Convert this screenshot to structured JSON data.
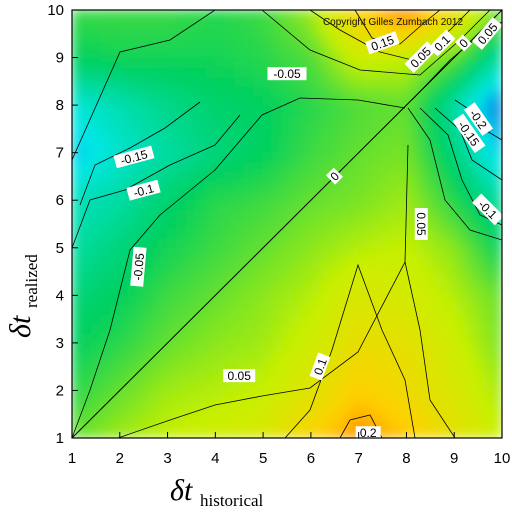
{
  "chart_data": {
    "type": "heatmap",
    "subtype": "contour",
    "x_label": {
      "main": "δt",
      "sub": "historical"
    },
    "y_label": {
      "main": "δt",
      "sub": "realized"
    },
    "x_ticks": [
      1,
      2,
      3,
      4,
      5,
      6,
      7,
      8,
      9,
      10
    ],
    "y_ticks": [
      1,
      2,
      3,
      4,
      5,
      6,
      7,
      8,
      9,
      10
    ],
    "xlim": [
      1,
      10
    ],
    "ylim": [
      1,
      10
    ],
    "grid": false,
    "colormap": [
      "#0033dd",
      "#00e8e8",
      "#00d060",
      "#c8f000",
      "#ffd000",
      "#ff5000"
    ],
    "color_range": [
      -0.25,
      0.25
    ],
    "copyright": "Copyright Gilles Zumbach 2012",
    "grid_values": [
      [
        0.0,
        0.03,
        0.05,
        0.06,
        0.08,
        0.14,
        0.2,
        0.16,
        0.1,
        0.05
      ],
      [
        -0.03,
        0.0,
        0.03,
        0.04,
        0.05,
        0.09,
        0.15,
        0.12,
        0.08,
        0.03
      ],
      [
        -0.05,
        -0.03,
        0.0,
        0.02,
        0.03,
        0.06,
        0.11,
        0.1,
        0.06,
        0.01
      ],
      [
        -0.07,
        -0.05,
        -0.02,
        0.0,
        0.02,
        0.04,
        0.08,
        0.07,
        0.04,
        0.0
      ],
      [
        -0.1,
        -0.07,
        -0.04,
        -0.02,
        0.0,
        0.02,
        0.04,
        0.05,
        0.02,
        -0.05
      ],
      [
        -0.12,
        -0.1,
        -0.06,
        -0.03,
        -0.02,
        0.0,
        0.01,
        0.03,
        -0.03,
        -0.1
      ],
      [
        -0.17,
        -0.13,
        -0.1,
        -0.07,
        -0.05,
        -0.02,
        0.0,
        0.01,
        -0.07,
        -0.17
      ],
      [
        -0.14,
        -0.11,
        -0.08,
        -0.06,
        -0.05,
        -0.03,
        -0.01,
        0.0,
        -0.1,
        -0.22
      ],
      [
        -0.05,
        -0.04,
        -0.04,
        -0.04,
        -0.03,
        -0.01,
        0.06,
        0.05,
        0.0,
        -0.1
      ],
      [
        -0.02,
        -0.02,
        -0.02,
        -0.03,
        -0.02,
        0.03,
        0.15,
        0.22,
        0.12,
        0.0
      ]
    ],
    "contour_labels": [
      {
        "text": "0.2",
        "x": 7.2,
        "y": 1.1,
        "angle": 0
      },
      {
        "text": "0.1",
        "x": 6.2,
        "y": 2.5,
        "angle": -70
      },
      {
        "text": "0.05",
        "x": 4.5,
        "y": 2.3,
        "angle": 0
      },
      {
        "text": "0.05",
        "x": 8.3,
        "y": 5.5,
        "angle": 90
      },
      {
        "text": "0",
        "x": 6.5,
        "y": 6.5,
        "angle": -45
      },
      {
        "text": "-0.05",
        "x": 2.4,
        "y": 4.6,
        "angle": -85
      },
      {
        "text": "-0.05",
        "x": 5.5,
        "y": 8.65,
        "angle": 0
      },
      {
        "text": "-0.1",
        "x": 2.5,
        "y": 6.2,
        "angle": -15
      },
      {
        "text": "-0.1",
        "x": 9.7,
        "y": 5.8,
        "angle": 45
      },
      {
        "text": "-0.15",
        "x": 2.3,
        "y": 6.9,
        "angle": -15
      },
      {
        "text": "-0.15",
        "x": 9.3,
        "y": 7.4,
        "angle": 55
      },
      {
        "text": "-0.2",
        "x": 9.5,
        "y": 7.7,
        "angle": 55
      },
      {
        "text": "0.15",
        "x": 7.5,
        "y": 9.3,
        "angle": -20
      },
      {
        "text": "0.1",
        "x": 8.75,
        "y": 9.3,
        "angle": -45
      },
      {
        "text": "0.05",
        "x": 8.3,
        "y": 9.0,
        "angle": -45
      },
      {
        "text": "0.05",
        "x": 9.7,
        "y": 9.5,
        "angle": -50
      },
      {
        "text": "0",
        "x": 9.2,
        "y": 9.3,
        "angle": -45
      }
    ]
  }
}
